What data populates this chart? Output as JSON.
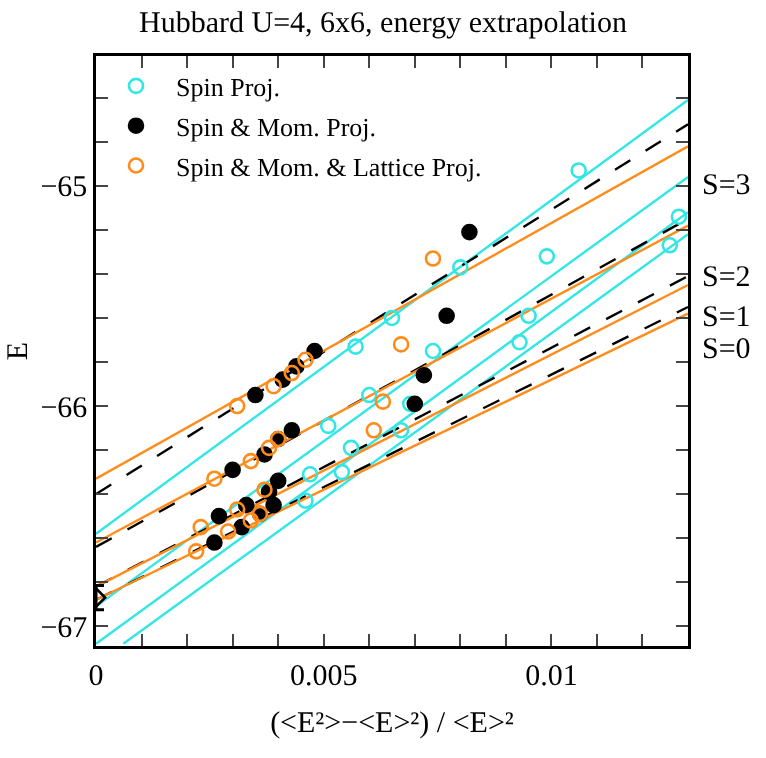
{
  "chart_data": {
    "type": "scatter",
    "title": "Hubbard U=4, 6x6, energy extrapolation",
    "xlabel": "(<E²>−<E>²) / <E>²",
    "ylabel": "E",
    "xlim": [
      0,
      0.013
    ],
    "ylim": [
      -67.09,
      -64.41
    ],
    "xticks": [
      0,
      {
        "value": 0.001,
        "label": null
      },
      {
        "value": 0.002,
        "label": null
      },
      {
        "value": 0.003,
        "label": null
      },
      {
        "value": 0.004,
        "label": null
      },
      0.005,
      {
        "value": 0.006,
        "label": null
      },
      {
        "value": 0.007,
        "label": null
      },
      {
        "value": 0.008,
        "label": null
      },
      {
        "value": 0.009,
        "label": null
      },
      0.01,
      {
        "value": 0.011,
        "label": null
      },
      {
        "value": 0.012,
        "label": null
      }
    ],
    "yticks": [
      {
        "value": -64.6,
        "label": null
      },
      {
        "value": -64.8,
        "label": null
      },
      -65,
      {
        "value": -65.2,
        "label": null
      },
      {
        "value": -65.4,
        "label": null
      },
      {
        "value": -65.6,
        "label": null
      },
      {
        "value": -65.8,
        "label": null
      },
      -66,
      {
        "value": -66.2,
        "label": null
      },
      {
        "value": -66.4,
        "label": null
      },
      {
        "value": -66.6,
        "label": null
      },
      {
        "value": -66.8,
        "label": null
      },
      -67
    ],
    "grid": false,
    "legend": "top left",
    "annotations": [
      "S=3",
      "S=2",
      "S=1",
      "S=0"
    ],
    "series": [
      {
        "type": "line",
        "color": "#33e6e6",
        "line_style": "solid",
        "x": [
          0,
          0.013
        ],
        "values": [
          -66.58,
          -64.61
        ]
      },
      {
        "type": "line",
        "color": "#33e6e6",
        "line_style": "solid",
        "x": [
          0,
          0.013
        ],
        "values": [
          -66.91,
          -64.96
        ]
      },
      {
        "type": "line",
        "color": "#33e6e6",
        "line_style": "solid",
        "x": [
          0,
          0.013
        ],
        "values": [
          -67.08,
          -65.12
        ]
      },
      {
        "type": "line",
        "color": "#33e6e6",
        "line_style": "solid",
        "x": [
          0.0006,
          0.013
        ],
        "values": [
          -67.08,
          -65.22
        ]
      },
      {
        "type": "line",
        "color": "#000000",
        "line_style": "dashed",
        "x": [
          0,
          0.013
        ],
        "values": [
          -66.4,
          -64.72
        ]
      },
      {
        "type": "line",
        "color": "#000000",
        "line_style": "dashed",
        "x": [
          0,
          0.013
        ],
        "values": [
          -66.64,
          -65.15
        ]
      },
      {
        "type": "line",
        "color": "#000000",
        "line_style": "dashed",
        "x": [
          0,
          0.013
        ],
        "values": [
          -66.82,
          -65.41
        ]
      },
      {
        "type": "line",
        "color": "#000000",
        "line_style": "dashed",
        "x": [
          0,
          0.013
        ],
        "values": [
          -66.88,
          -65.55
        ]
      },
      {
        "type": "line",
        "color": "#ff8c1a",
        "line_style": "solid",
        "x": [
          0,
          0.013
        ],
        "values": [
          -66.33,
          -64.82
        ]
      },
      {
        "type": "line",
        "color": "#ff8c1a",
        "line_style": "solid",
        "x": [
          0,
          0.013
        ],
        "values": [
          -66.62,
          -65.18
        ]
      },
      {
        "type": "line",
        "color": "#ff8c1a",
        "line_style": "solid",
        "x": [
          0,
          0.013
        ],
        "values": [
          -66.82,
          -65.45
        ]
      },
      {
        "type": "line",
        "color": "#ff8c1a",
        "line_style": "solid",
        "x": [
          0,
          0.013
        ],
        "values": [
          -66.88,
          -65.58
        ]
      },
      {
        "name": "Spin Proj.",
        "color": "#33e6e6",
        "marker": "circle-open",
        "x": [
          0.0046,
          0.0047,
          0.0051,
          0.0054,
          0.0056,
          0.0057,
          0.006,
          0.0065,
          0.0067,
          0.0069,
          0.0074,
          0.008,
          0.0093,
          0.0095,
          0.0099,
          0.0106,
          0.0126,
          0.0128
        ],
        "values": [
          -66.43,
          -66.31,
          -66.09,
          -66.3,
          -66.19,
          -65.73,
          -65.95,
          -65.6,
          -66.11,
          -65.99,
          -65.75,
          -65.37,
          -65.71,
          -65.59,
          -65.32,
          -64.93,
          -65.27,
          -65.14
        ]
      },
      {
        "name": "Spin & Mom. Proj.",
        "color": "#000000",
        "marker": "circle",
        "x": [
          0.0026,
          0.0027,
          0.003,
          0.0032,
          0.0033,
          0.0035,
          0.0036,
          0.0037,
          0.0038,
          0.0039,
          0.004,
          0.004,
          0.0041,
          0.0043,
          0.0044,
          0.0048,
          0.007,
          0.0072,
          0.0077,
          0.0082
        ],
        "values": [
          -66.62,
          -66.5,
          -66.29,
          -66.55,
          -66.45,
          -65.95,
          -66.49,
          -66.22,
          -66.39,
          -66.45,
          -66.34,
          -66.15,
          -65.88,
          -66.11,
          -65.82,
          -65.75,
          -65.99,
          -65.86,
          -65.59,
          -65.21
        ]
      },
      {
        "name": "Spin & Mom. & Lattice Proj.",
        "color": "#ff8c1a",
        "marker": "circle-open",
        "x": [
          0.0022,
          0.0023,
          0.0026,
          0.0029,
          0.0031,
          0.0031,
          0.0034,
          0.0034,
          0.0036,
          0.0038,
          0.0037,
          0.0039,
          0.004,
          0.0043,
          0.0046,
          0.0061,
          0.0063,
          0.0067,
          0.0074
        ],
        "values": [
          -66.66,
          -66.55,
          -66.33,
          -66.57,
          -66.0,
          -66.47,
          -66.52,
          -66.25,
          -66.49,
          -66.19,
          -66.38,
          -65.91,
          -66.15,
          -65.85,
          -65.79,
          -66.11,
          -65.98,
          -65.72,
          -65.33
        ]
      },
      {
        "color": "#000000",
        "marker": "diamond-open",
        "x": [
          0
        ],
        "values": [
          -66.87
        ],
        "errors": [
          0.055
        ]
      }
    ]
  }
}
